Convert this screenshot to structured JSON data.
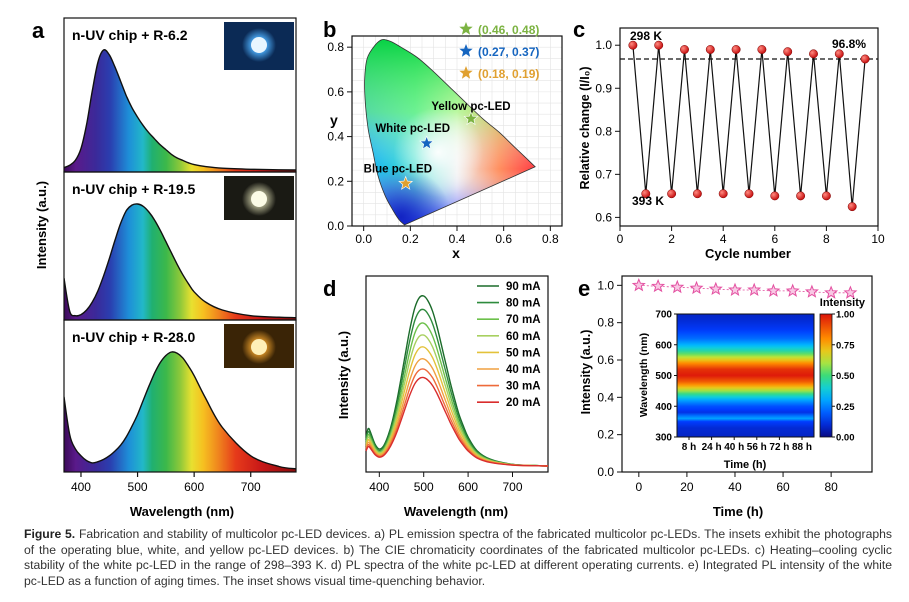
{
  "caption": {
    "label": "Figure 5.",
    "text": "Fabrication and stability of multicolor pc-LED devices. a) PL emission spectra of the fabricated multicolor pc-LEDs. The insets exhibit the photographs of the operating blue, white, and yellow pc-LED devices. b) The CIE chromaticity coordinates of the fabricated multicolor pc-LEDs. c) Heating–cooling cyclic stability of the white pc-LED in the range of 298–393 K. d) PL spectra of the white pc-LED at different operating currents. e) Integrated PL intensity of the white pc-LED as a function of aging times. The inset shows visual time-quenching behavior."
  },
  "panel_labels": {
    "a": "a",
    "b": "b",
    "c": "c",
    "d": "d",
    "e": "e"
  },
  "chart_data": [
    {
      "panel": "a",
      "type": "area",
      "xlabel": "Wavelength (nm)",
      "ylabel": "Intensity (a.u.)",
      "xlim": [
        370,
        780
      ],
      "xticks": [
        400,
        500,
        600,
        700
      ],
      "colored_fill": "spectral wavelength gradient",
      "series": [
        {
          "name": "n-UV chip + R-6.2",
          "inset": "blue pc-LED photo",
          "x": [
            370,
            380,
            390,
            400,
            410,
            420,
            430,
            440,
            450,
            460,
            470,
            480,
            490,
            500,
            510,
            520,
            530,
            540,
            550,
            560,
            570,
            580,
            590,
            600,
            620,
            650,
            700,
            750,
            780
          ],
          "y": [
            0.02,
            0.04,
            0.08,
            0.18,
            0.38,
            0.66,
            0.9,
            1.0,
            0.96,
            0.86,
            0.74,
            0.62,
            0.52,
            0.44,
            0.37,
            0.31,
            0.26,
            0.21,
            0.17,
            0.13,
            0.1,
            0.08,
            0.06,
            0.045,
            0.028,
            0.015,
            0.006,
            0.002,
            0.0
          ]
        },
        {
          "name": "n-UV chip + R-19.5",
          "inset": "white pc-LED photo",
          "x": [
            370,
            380,
            390,
            400,
            410,
            420,
            430,
            440,
            450,
            460,
            470,
            480,
            490,
            500,
            510,
            520,
            530,
            540,
            550,
            560,
            570,
            580,
            590,
            600,
            620,
            650,
            700,
            750,
            780
          ],
          "y": [
            0.35,
            0.06,
            0.02,
            0.03,
            0.07,
            0.14,
            0.24,
            0.37,
            0.52,
            0.68,
            0.83,
            0.94,
            0.99,
            1.0,
            0.98,
            0.93,
            0.86,
            0.77,
            0.67,
            0.57,
            0.47,
            0.38,
            0.3,
            0.23,
            0.14,
            0.07,
            0.02,
            0.007,
            0.003
          ]
        },
        {
          "name": "n-UV chip + R-28.0",
          "inset": "yellow pc-LED photo",
          "x": [
            370,
            380,
            390,
            400,
            410,
            420,
            430,
            440,
            450,
            460,
            470,
            480,
            490,
            500,
            510,
            520,
            530,
            540,
            550,
            560,
            570,
            580,
            590,
            600,
            620,
            650,
            700,
            750,
            780
          ],
          "y": [
            0.62,
            0.3,
            0.18,
            0.12,
            0.08,
            0.06,
            0.07,
            0.09,
            0.12,
            0.16,
            0.21,
            0.28,
            0.37,
            0.47,
            0.59,
            0.71,
            0.82,
            0.91,
            0.97,
            1.0,
            0.99,
            0.95,
            0.88,
            0.8,
            0.61,
            0.36,
            0.12,
            0.03,
            0.01
          ]
        }
      ]
    },
    {
      "panel": "b",
      "type": "scatter",
      "xlabel": "x",
      "ylabel": "y",
      "xlim": [
        -0.05,
        0.85
      ],
      "ylim": [
        0.0,
        0.85
      ],
      "xticks": [
        0.0,
        0.2,
        0.4,
        0.6,
        0.8
      ],
      "yticks": [
        0.0,
        0.2,
        0.4,
        0.6,
        0.8
      ],
      "grid": true,
      "background": "CIE 1931 chromaticity diagram",
      "points": [
        {
          "label": "Yellow pc-LED",
          "legend": "(0.46, 0.48)",
          "x": 0.46,
          "y": 0.48,
          "color": "#7cb342"
        },
        {
          "label": "White pc-LED",
          "legend": "(0.27, 0.37)",
          "x": 0.27,
          "y": 0.37,
          "color": "#1565c0"
        },
        {
          "label": "Blue pc-LED",
          "legend": "(0.18, 0.19)",
          "x": 0.18,
          "y": 0.19,
          "color": "#e0a030"
        }
      ]
    },
    {
      "panel": "c",
      "type": "line",
      "xlabel": "Cycle number",
      "ylabel": "Relative change (I/I₀)",
      "xlim": [
        0,
        10
      ],
      "ylim": [
        0.58,
        1.04
      ],
      "xticks": [
        0,
        2,
        4,
        6,
        8,
        10
      ],
      "yticks": [
        0.6,
        0.7,
        0.8,
        0.9,
        1.0
      ],
      "reference_line": 0.968,
      "annotations": [
        "298 K",
        "393 K",
        "96.8%"
      ],
      "x": [
        0.5,
        1,
        1.5,
        2,
        2.5,
        3,
        3.5,
        4,
        4.5,
        5,
        5.5,
        6,
        6.5,
        7,
        7.5,
        8,
        8.5,
        9,
        9.5
      ],
      "y": [
        1.0,
        0.655,
        1.0,
        0.655,
        0.99,
        0.655,
        0.99,
        0.655,
        0.99,
        0.655,
        0.99,
        0.65,
        0.985,
        0.65,
        0.98,
        0.65,
        0.98,
        0.625,
        0.968
      ]
    },
    {
      "panel": "d",
      "type": "line",
      "xlabel": "Wavelength (nm)",
      "ylabel": "Intensity (a.u.)",
      "xlim": [
        370,
        780
      ],
      "xticks": [
        400,
        500,
        600,
        700
      ],
      "series": [
        {
          "name": "90 mA",
          "scale": 1.0,
          "color": "#1b6b2a"
        },
        {
          "name": "80 mA",
          "scale": 0.92,
          "color": "#2e8b3d"
        },
        {
          "name": "70 mA",
          "scale": 0.84,
          "color": "#6cc04a"
        },
        {
          "name": "60 mA",
          "scale": 0.77,
          "color": "#a8d060"
        },
        {
          "name": "50 mA",
          "scale": 0.7,
          "color": "#e3c23a"
        },
        {
          "name": "40 mA",
          "scale": 0.63,
          "color": "#f0a040"
        },
        {
          "name": "30 mA",
          "scale": 0.57,
          "color": "#ee6a3a"
        },
        {
          "name": "20 mA",
          "scale": 0.52,
          "color": "#d92d2d"
        }
      ],
      "shape": {
        "x": [
          370,
          375,
          380,
          390,
          400,
          410,
          420,
          430,
          440,
          450,
          460,
          470,
          480,
          490,
          500,
          510,
          520,
          530,
          540,
          550,
          560,
          570,
          580,
          590,
          600,
          620,
          650,
          700,
          750,
          780
        ],
        "y": [
          0.17,
          0.22,
          0.2,
          0.13,
          0.1,
          0.12,
          0.18,
          0.27,
          0.39,
          0.53,
          0.68,
          0.82,
          0.93,
          0.99,
          1.0,
          0.97,
          0.91,
          0.82,
          0.71,
          0.6,
          0.49,
          0.39,
          0.3,
          0.23,
          0.17,
          0.09,
          0.04,
          0.01,
          0.003,
          0.0
        ]
      }
    },
    {
      "panel": "e",
      "type": "scatter",
      "xlabel": "Time (h)",
      "ylabel": "Intensity (a.u.)",
      "xlim": [
        -7,
        97
      ],
      "ylim": [
        0.0,
        1.05
      ],
      "xticks": [
        0,
        20,
        40,
        60,
        80
      ],
      "yticks": [
        0.0,
        0.2,
        0.4,
        0.6,
        0.8,
        1.0
      ],
      "x": [
        0,
        8,
        16,
        24,
        32,
        40,
        48,
        56,
        64,
        72,
        80,
        88
      ],
      "y": [
        1.0,
        0.995,
        0.99,
        0.985,
        0.98,
        0.975,
        0.975,
        0.97,
        0.97,
        0.965,
        0.96,
        0.96
      ],
      "marker_color": "#e34fa0",
      "inset": {
        "type": "heatmap",
        "xlabel": "Time (h)",
        "ylabel": "Wavelength (nm)",
        "colorbar_label": "Intensity",
        "xticks": [
          "8 h",
          "24 h",
          "40 h",
          "56 h",
          "72 h",
          "88 h"
        ],
        "yticks": [
          300,
          400,
          500,
          600,
          700
        ],
        "ylim": [
          300,
          700
        ],
        "colorbar_ticks": [
          "0.00",
          "0.25",
          "0.50",
          "0.75",
          "1.00"
        ],
        "profile_nm": [
          300,
          330,
          350,
          360,
          370,
          380,
          400,
          420,
          440,
          460,
          480,
          500,
          520,
          540,
          560,
          580,
          600,
          620,
          650,
          680,
          700
        ],
        "profile_val": [
          0.08,
          0.1,
          0.15,
          0.3,
          0.22,
          0.12,
          0.18,
          0.3,
          0.48,
          0.7,
          0.88,
          0.99,
          0.95,
          0.8,
          0.62,
          0.45,
          0.32,
          0.22,
          0.14,
          0.1,
          0.08
        ]
      }
    }
  ]
}
